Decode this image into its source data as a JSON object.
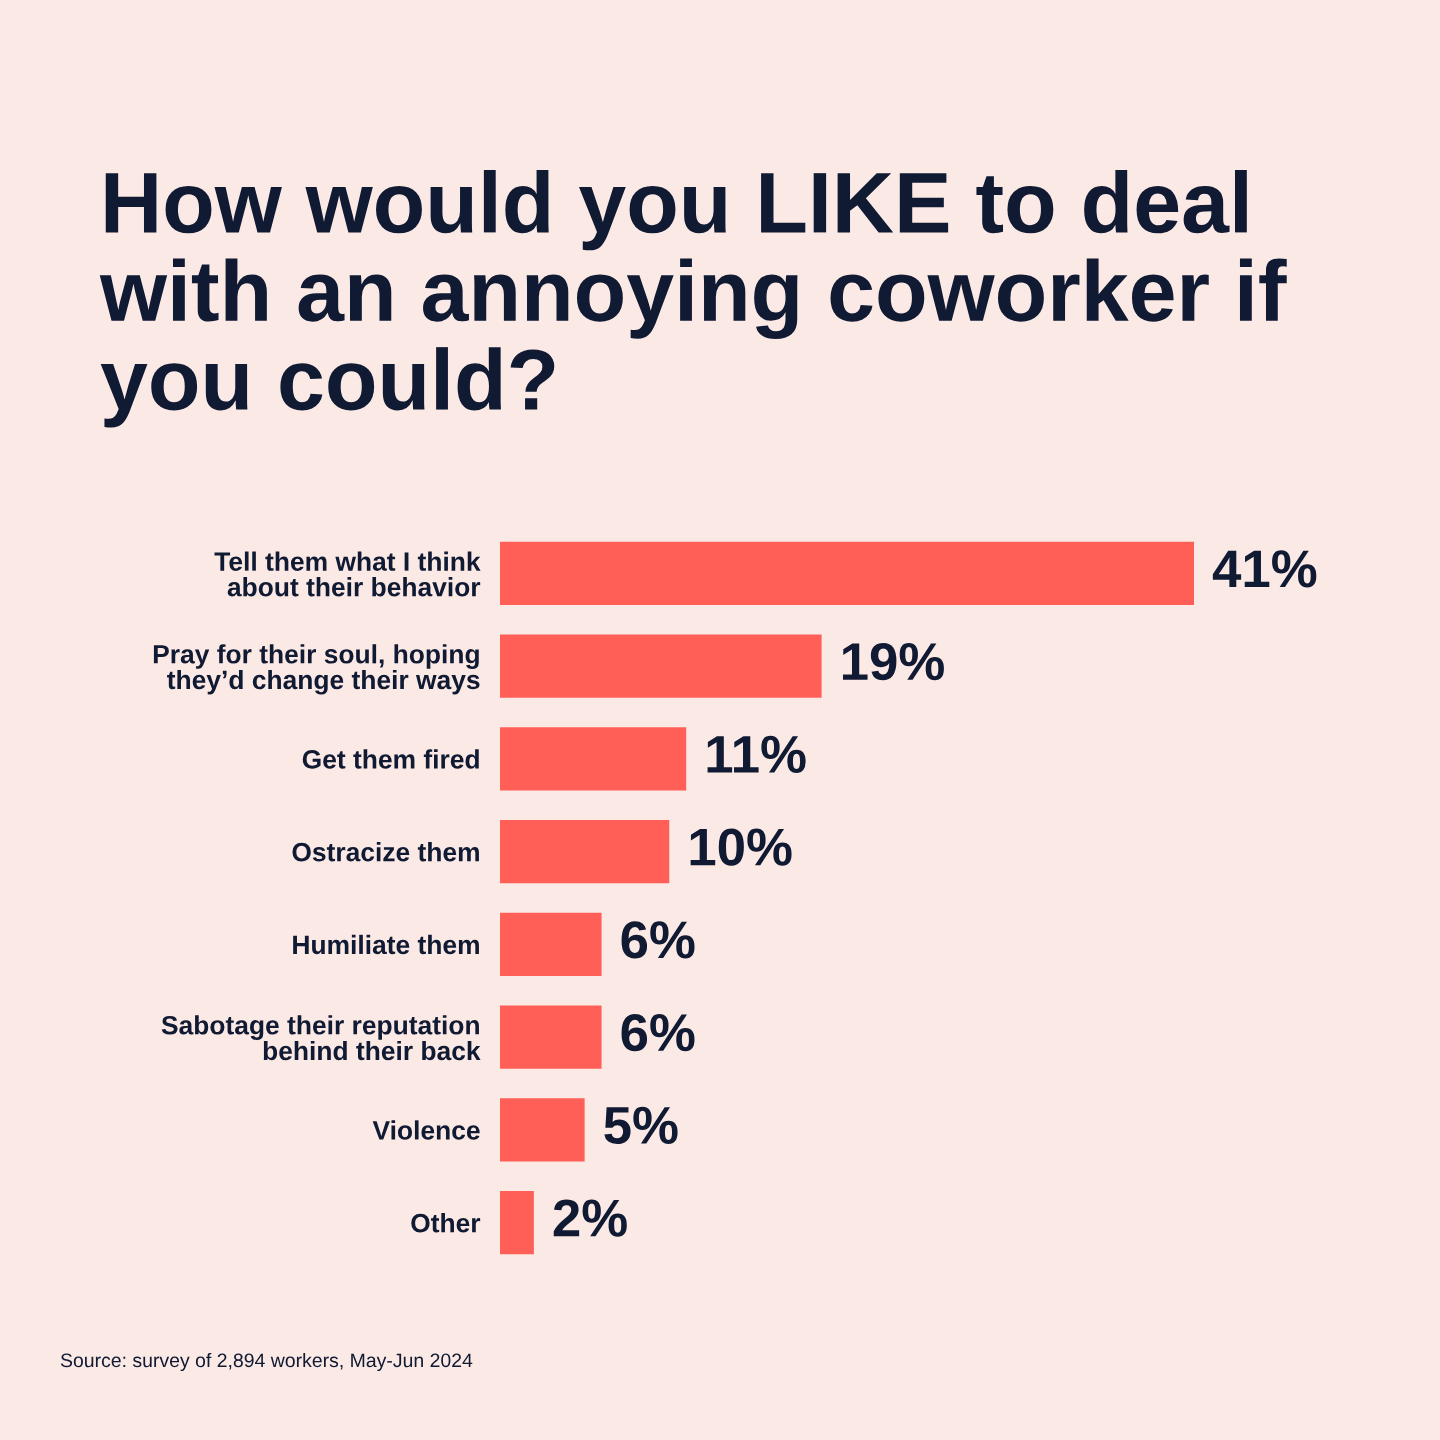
{
  "chart_data": {
    "type": "bar",
    "orientation": "horizontal",
    "title": "How would you LIKE to deal\nwith an annoying coworker if\nyou could?",
    "categories": [
      "Tell them what I think\nabout their behavior",
      "Pray for their soul, hoping\nthey’d change their ways",
      "Get them fired",
      "Ostracize them",
      "Humiliate them",
      "Sabotage their reputation\nbehind their back",
      "Violence",
      "Other"
    ],
    "values": [
      41,
      19,
      11,
      10,
      6,
      6,
      5,
      2
    ],
    "value_labels": [
      "41%",
      "19%",
      "11%",
      "10%",
      "6%",
      "6%",
      "5%",
      "2%"
    ],
    "color": "#ff5f57",
    "tick_labels": "y",
    "annotations": [
      "Source: survey of 2,894 workers, May-Jun 2024"
    ]
  }
}
